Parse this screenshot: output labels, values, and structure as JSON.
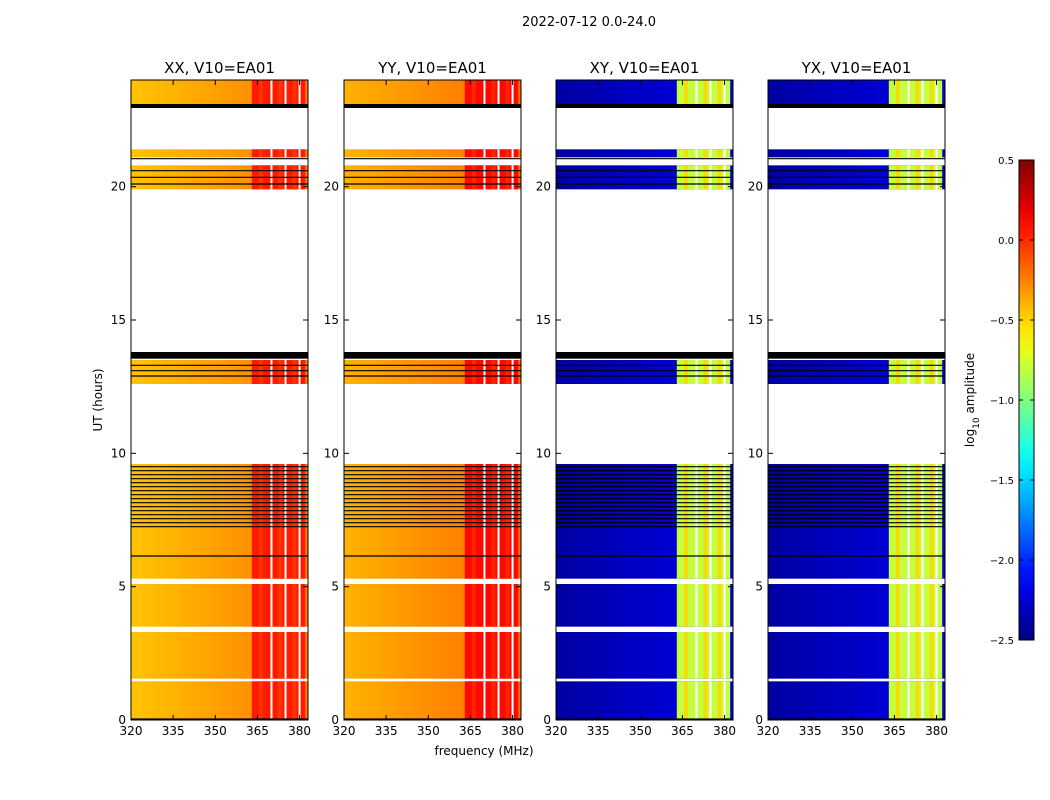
{
  "chart_data": {
    "type": "heatmap",
    "suptitle": "2022-07-12 0.0-24.0",
    "xlabel": "frequency (MHz)",
    "ylabel": "UT (hours)",
    "xlim": [
      320,
      383
    ],
    "ylim": [
      0,
      24
    ],
    "x_ticks": [
      "320",
      "335",
      "350",
      "365",
      "380"
    ],
    "x_tick_values": [
      320,
      335,
      350,
      365,
      380
    ],
    "y_ticks": [
      "0",
      "5",
      "10",
      "15",
      "20"
    ],
    "y_tick_values": [
      0,
      5,
      10,
      15,
      20
    ],
    "colorbar": {
      "label": "log10 amplitude",
      "label_main": "log",
      "label_sub": "10",
      "label_tail": " amplitude",
      "range": [
        -2.5,
        0.5
      ],
      "ticks": [
        "0.5",
        "0.0",
        "−0.5",
        "−1.0",
        "−1.5",
        "−2.0",
        "−2.5"
      ],
      "tick_values": [
        0.5,
        0.0,
        -0.5,
        -1.0,
        -1.5,
        -2.0,
        -2.5
      ],
      "colormap": "jet"
    },
    "panels": [
      {
        "title": "XX, V10=EA01",
        "base_level": -0.35,
        "band_level": 0.05,
        "stripe_level": -0.05
      },
      {
        "title": "YY, V10=EA01",
        "base_level": -0.3,
        "band_level": 0.1,
        "stripe_level": 0.0
      },
      {
        "title": "XY, V10=EA01",
        "base_level": -2.3,
        "band_level": -0.8,
        "stripe_level": -0.5
      },
      {
        "title": "YX, V10=EA01",
        "base_level": -2.3,
        "band_level": -0.8,
        "stripe_level": -0.5
      }
    ],
    "rfi_band_MHz": [
      363,
      382
    ],
    "rfi_gap_freqs_MHz": [
      370,
      375,
      380
    ],
    "data_time_ranges_hours": [
      [
        0,
        1.45
      ],
      [
        1.55,
        3.3
      ],
      [
        3.5,
        5.1
      ],
      [
        5.3,
        7.7
      ],
      [
        7.7,
        9.6
      ],
      [
        12.6,
        13.5
      ],
      [
        19.9,
        20.8
      ],
      [
        21.1,
        21.4
      ],
      [
        23.1,
        24
      ]
    ],
    "flagged_black_ranges_hours": [
      [
        0.0,
        0.06
      ],
      [
        13.55,
        13.8
      ],
      [
        22.95,
        23.1
      ]
    ],
    "line_times_hours": [
      6.15,
      7.25,
      7.4,
      7.55,
      7.7,
      7.85,
      8.0,
      8.15,
      8.3,
      8.45,
      8.6,
      8.75,
      8.9,
      9.05,
      9.2,
      9.35,
      9.5,
      12.9,
      13.1,
      13.3,
      20.1,
      20.35,
      20.6,
      21.05
    ]
  }
}
